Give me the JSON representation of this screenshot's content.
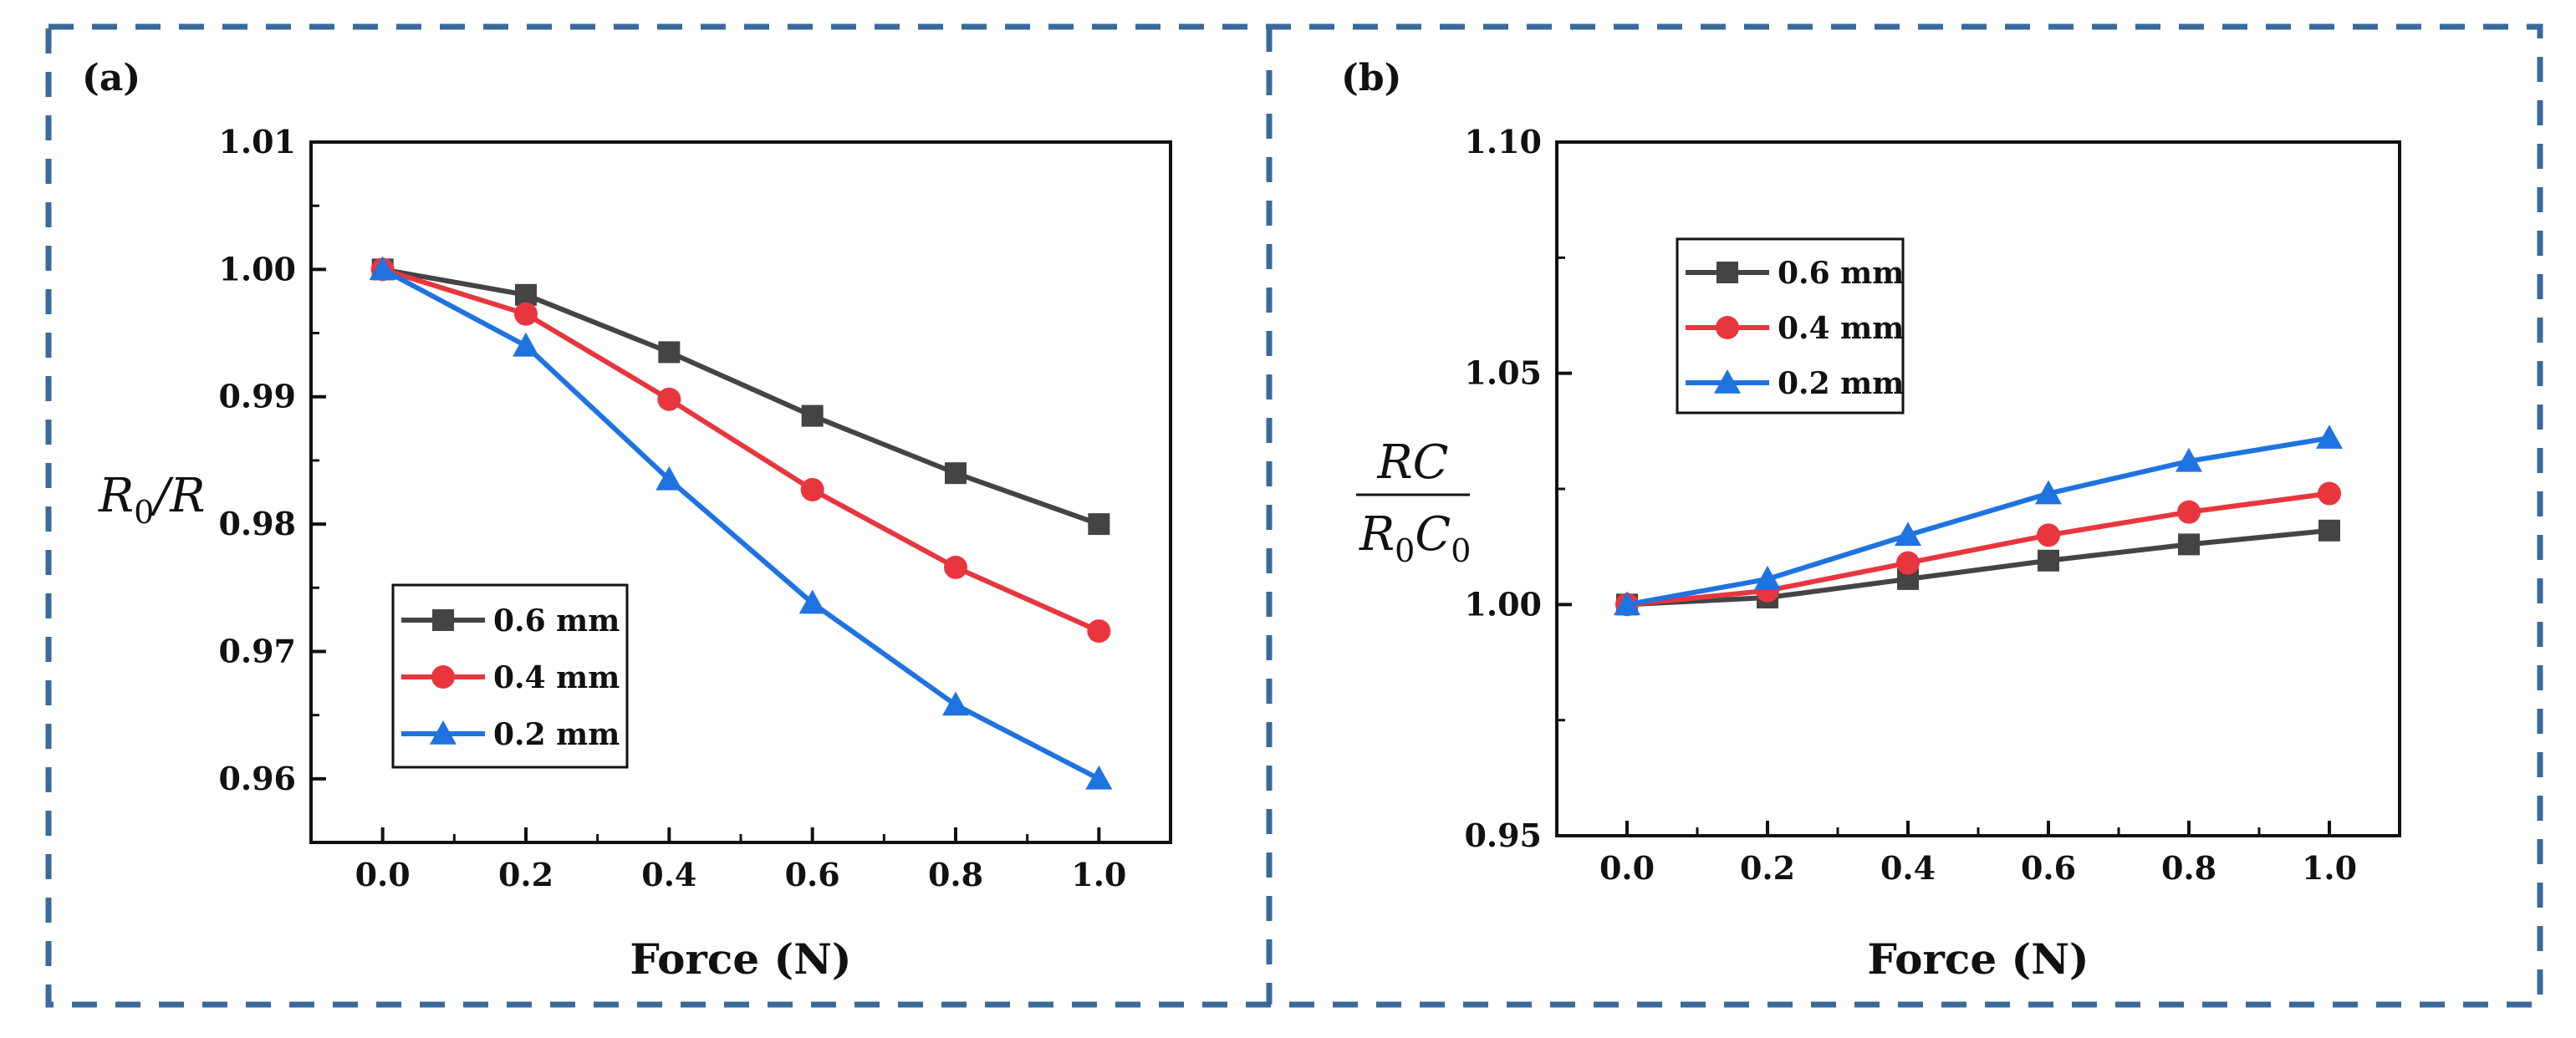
{
  "chart_data": [
    {
      "type": "line",
      "panel_label": "(a)",
      "ylabel": {
        "main": "R",
        "sub": "0",
        "rest": "/R"
      },
      "xlabel": "Force (N)",
      "x": [
        0.0,
        0.2,
        0.4,
        0.6,
        0.8,
        1.0
      ],
      "x_ticks": [
        "0.0",
        "0.2",
        "0.4",
        "0.6",
        "0.8",
        "1.0"
      ],
      "xlim": [
        -0.1,
        1.1
      ],
      "ylim": [
        0.955,
        1.01
      ],
      "y_ticks": [
        0.96,
        0.97,
        0.98,
        0.99,
        1.0,
        1.01
      ],
      "y_tick_labels": [
        "0.96",
        "0.97",
        "0.98",
        "0.99",
        "1.00",
        "1.01"
      ],
      "legend_position": "bottom-left",
      "series": [
        {
          "name": "0.6 mm",
          "color": "#444444",
          "marker": "square",
          "values": [
            1.0,
            0.998,
            0.9935,
            0.9885,
            0.984,
            0.98
          ]
        },
        {
          "name": "0.4 mm",
          "color": "#e8363e",
          "marker": "circle",
          "values": [
            1.0,
            0.9965,
            0.9898,
            0.9827,
            0.9766,
            0.9716
          ]
        },
        {
          "name": "0.2 mm",
          "color": "#1f73e0",
          "marker": "triangle",
          "values": [
            1.0,
            0.994,
            0.9835,
            0.9738,
            0.9658,
            0.96
          ]
        }
      ]
    },
    {
      "type": "line",
      "panel_label": "(b)",
      "ylabel": {
        "num": "RC",
        "den_main": "R",
        "den_sub": "0",
        "den_rest": "C",
        "den_sub2": "0"
      },
      "xlabel": "Force (N)",
      "x": [
        0.0,
        0.2,
        0.4,
        0.6,
        0.8,
        1.0
      ],
      "x_ticks": [
        "0.0",
        "0.2",
        "0.4",
        "0.6",
        "0.8",
        "1.0"
      ],
      "xlim": [
        -0.1,
        1.1
      ],
      "ylim": [
        0.95,
        1.1
      ],
      "y_ticks": [
        0.95,
        1.0,
        1.05,
        1.1
      ],
      "y_tick_labels": [
        "0.95",
        "1.00",
        "1.05",
        "1.10"
      ],
      "legend_position": "top-left",
      "series": [
        {
          "name": "0.6 mm",
          "color": "#444444",
          "marker": "square",
          "values": [
            1.0,
            1.0015,
            1.0055,
            1.0095,
            1.013,
            1.016
          ]
        },
        {
          "name": "0.4 mm",
          "color": "#e8363e",
          "marker": "circle",
          "values": [
            1.0,
            1.003,
            1.009,
            1.015,
            1.02,
            1.024
          ]
        },
        {
          "name": "0.2 mm",
          "color": "#1f73e0",
          "marker": "triangle",
          "values": [
            1.0,
            1.0055,
            1.015,
            1.024,
            1.031,
            1.036
          ]
        }
      ]
    }
  ]
}
